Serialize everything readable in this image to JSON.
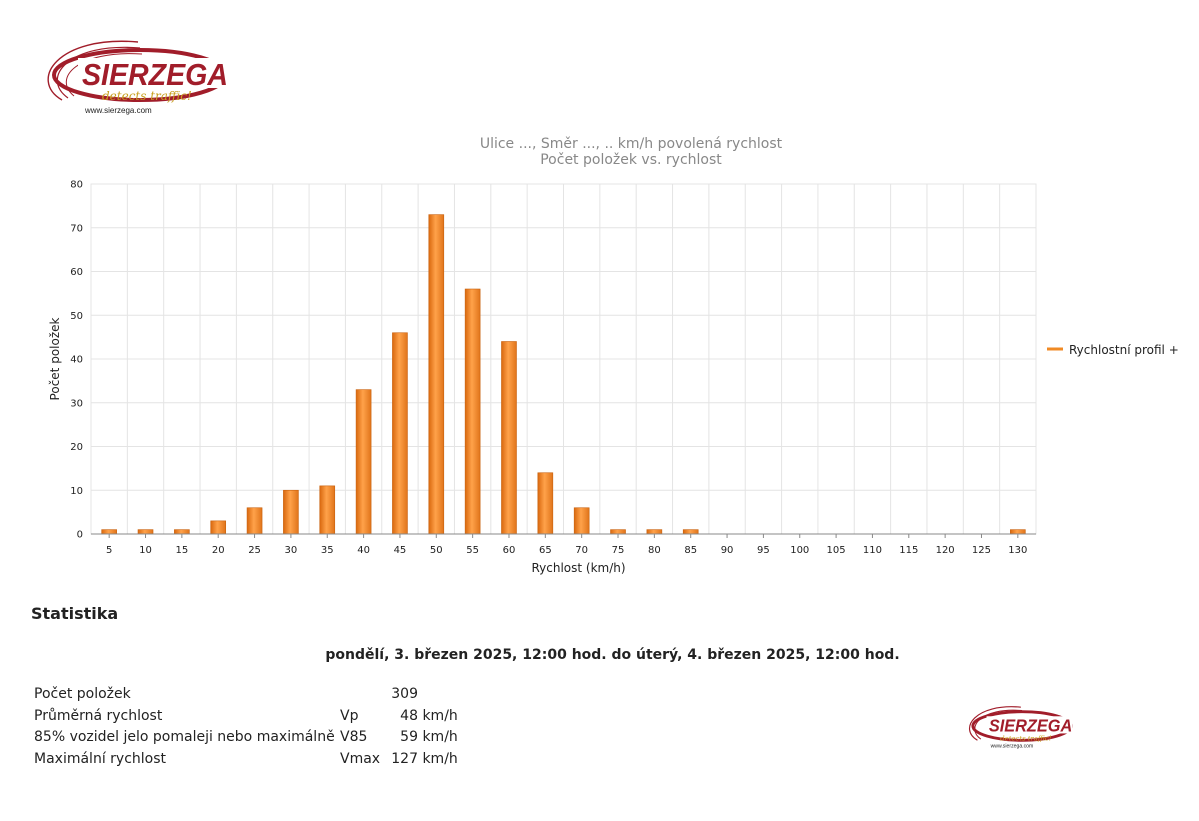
{
  "brand": {
    "name": "SIERZEGA",
    "tagline": "detects traffic!",
    "url": "www.sierzega.com"
  },
  "chart_data": {
    "type": "bar",
    "title": "Ulice ..., Směr ..., .. km/h povolená rychlost",
    "subtitle": "Počet položek vs. rychlost",
    "xlabel": "Rychlost (km/h)",
    "ylabel": "Počet položek",
    "ylim": [
      0,
      80
    ],
    "yticks": [
      0,
      10,
      20,
      30,
      40,
      50,
      60,
      70,
      80
    ],
    "categories": [
      "5",
      "10",
      "15",
      "20",
      "25",
      "30",
      "35",
      "40",
      "45",
      "50",
      "55",
      "60",
      "65",
      "70",
      "75",
      "80",
      "85",
      "90",
      "95",
      "100",
      "105",
      "110",
      "115",
      "120",
      "125",
      "130"
    ],
    "series": [
      {
        "name": "Rychlostní profil +",
        "color": "#f08a24",
        "values": [
          1,
          1,
          1,
          3,
          6,
          10,
          11,
          33,
          46,
          73,
          56,
          44,
          14,
          6,
          1,
          1,
          1,
          0,
          0,
          0,
          0,
          0,
          0,
          0,
          0,
          1
        ]
      }
    ],
    "grid": true,
    "legend_position": "right"
  },
  "stats": {
    "heading": "Statistika",
    "period": "pondělí, 3. březen 2025, 12:00 hod. do úterý, 4. březen 2025, 12:00 hod.",
    "rows": [
      {
        "label": "Počet položek",
        "symbol": "",
        "value": "309",
        "unit": ""
      },
      {
        "label": "Průměrná rychlost",
        "symbol": "Vp",
        "value": "48",
        "unit": "km/h"
      },
      {
        "label": "85% vozidel jelo pomaleji nebo maximálně",
        "symbol": "V85",
        "value": "59",
        "unit": "km/h"
      },
      {
        "label": "Maximální rychlost",
        "symbol": "Vmax",
        "value": "127",
        "unit": "km/h"
      }
    ]
  }
}
